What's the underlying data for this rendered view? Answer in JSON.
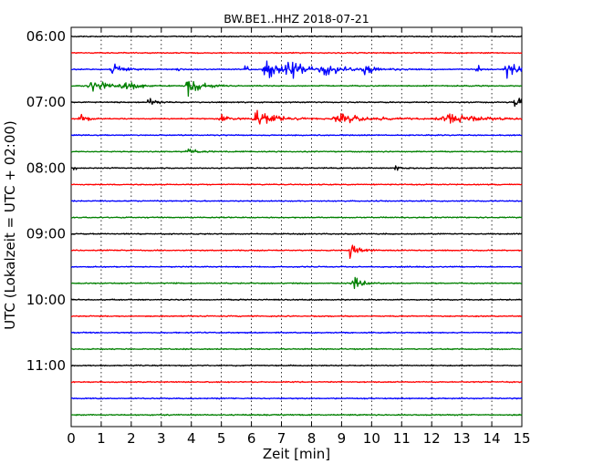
{
  "chart_data": {
    "type": "line",
    "title": "BW.BE1..HHZ 2018-07-21",
    "xlabel": "Zeit  [min]",
    "ylabel": "UTC (Lokalzeit = UTC + 02:00)",
    "xlim": [
      0,
      15
    ],
    "x_ticks": [
      "0",
      "1",
      "2",
      "3",
      "4",
      "5",
      "6",
      "7",
      "8",
      "9",
      "10",
      "11",
      "12",
      "13",
      "14",
      "15"
    ],
    "y_tick_labels": [
      "06:00",
      "07:00",
      "08:00",
      "09:00",
      "10:00",
      "11:00"
    ],
    "row_interval_min": 15,
    "rows_per_label": 4,
    "grid": "vertical dotted at each minute",
    "colors": [
      "#000000",
      "#ff0000",
      "#0000ff",
      "#008000"
    ],
    "traces": [
      {
        "start": "06:00",
        "events": []
      },
      {
        "start": "06:15",
        "events": []
      },
      {
        "start": "06:30",
        "events": [
          {
            "t": 1.4,
            "amp": 0.55,
            "dur": 0.5
          },
          {
            "t": 3.5,
            "amp": 0.5,
            "dur": 0.08
          },
          {
            "t": 5.8,
            "amp": 1.3,
            "dur": 0.08
          },
          {
            "t": 6.5,
            "amp": 0.9,
            "dur": 0.8
          },
          {
            "t": 7.3,
            "amp": 0.7,
            "dur": 0.8
          },
          {
            "t": 8.5,
            "amp": 0.4,
            "dur": 1.5
          },
          {
            "t": 9.8,
            "amp": 0.6,
            "dur": 0.3
          },
          {
            "t": 13.5,
            "amp": 0.9,
            "dur": 0.1
          },
          {
            "t": 14.5,
            "amp": 0.7,
            "dur": 0.6
          }
        ]
      },
      {
        "start": "06:45",
        "events": [
          {
            "t": 0.7,
            "amp": 0.5,
            "dur": 0.8
          },
          {
            "t": 1.8,
            "amp": 0.5,
            "dur": 0.6
          },
          {
            "t": 3.9,
            "amp": 0.8,
            "dur": 0.6
          }
        ]
      },
      {
        "start": "07:00",
        "events": [
          {
            "t": 2.6,
            "amp": 0.35,
            "dur": 0.4
          },
          {
            "t": 14.8,
            "amp": 0.5,
            "dur": 0.4
          }
        ]
      },
      {
        "start": "07:15",
        "events": [
          {
            "t": 0.3,
            "amp": 0.6,
            "dur": 0.3
          },
          {
            "t": 5.0,
            "amp": 0.5,
            "dur": 0.4
          },
          {
            "t": 6.2,
            "amp": 0.8,
            "dur": 0.9
          },
          {
            "t": 9.0,
            "amp": 0.4,
            "dur": 1.5
          },
          {
            "t": 12.5,
            "amp": 0.5,
            "dur": 1.5
          }
        ]
      },
      {
        "start": "07:30",
        "events": []
      },
      {
        "start": "07:45",
        "events": [
          {
            "t": 3.9,
            "amp": 0.3,
            "dur": 0.4
          }
        ]
      },
      {
        "start": "08:00",
        "events": [
          {
            "t": 0.1,
            "amp": 0.3,
            "dur": 0.1
          },
          {
            "t": 10.8,
            "amp": 0.2,
            "dur": 0.3
          }
        ]
      },
      {
        "start": "08:15",
        "events": []
      },
      {
        "start": "08:30",
        "events": []
      },
      {
        "start": "08:45",
        "events": []
      },
      {
        "start": "09:00",
        "events": []
      },
      {
        "start": "09:15",
        "events": [
          {
            "t": 9.3,
            "amp": 0.7,
            "dur": 0.4
          }
        ]
      },
      {
        "start": "09:30",
        "events": []
      },
      {
        "start": "09:45",
        "events": [
          {
            "t": 9.4,
            "amp": 0.7,
            "dur": 0.4
          }
        ]
      },
      {
        "start": "10:00",
        "events": []
      },
      {
        "start": "10:15",
        "events": []
      },
      {
        "start": "10:30",
        "events": []
      },
      {
        "start": "10:45",
        "events": []
      },
      {
        "start": "11:00",
        "events": []
      },
      {
        "start": "11:15",
        "events": []
      },
      {
        "start": "11:30",
        "events": []
      },
      {
        "start": "11:45",
        "events": []
      }
    ]
  }
}
